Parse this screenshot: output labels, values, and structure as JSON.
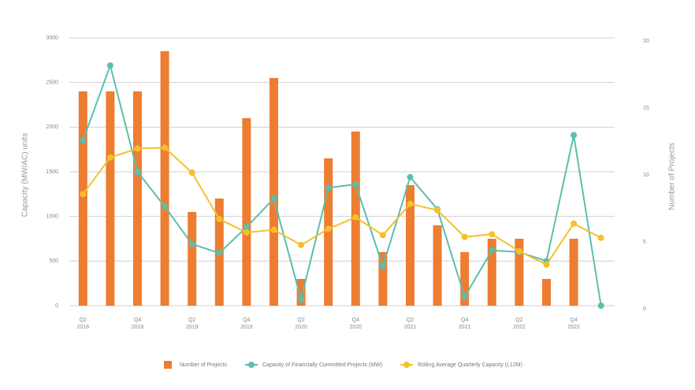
{
  "chart_data": {
    "type": "bar-line",
    "ylabel": "Capacity (MW/AC) units",
    "y2label": "Number of Projects",
    "categories": [
      "Q2 2018",
      null,
      "Q4 2018",
      null,
      "Q2 2019",
      null,
      "Q4 2019",
      null,
      "Q2 2020",
      null,
      "Q4 2020",
      null,
      "Q2 2021",
      null,
      "Q4 2021",
      null,
      "Q2 2022",
      null,
      "Q4 2022",
      null
    ],
    "ylim": [
      0,
      3000
    ],
    "yticks": [
      0,
      500,
      1000,
      1500,
      2000,
      2500,
      3000
    ],
    "y2lim": [
      0,
      20
    ],
    "y2ticks": [
      0,
      5,
      10,
      15,
      20
    ],
    "grid": true,
    "series": [
      {
        "name": "Number of Projects",
        "type": "bar",
        "axis": "y2",
        "color": "#ed7d31",
        "values": [
          16,
          16,
          16,
          19,
          7,
          8,
          14,
          17,
          2,
          11,
          13,
          4,
          9,
          6,
          4,
          5,
          5,
          2,
          5,
          0
        ]
      },
      {
        "name": "Capacity of Financially Committed Projects (MW)",
        "type": "line",
        "color": "#5bbfad",
        "values": [
          1850,
          2690,
          1500,
          1110,
          690,
          590,
          880,
          1200,
          70,
          1320,
          1360,
          440,
          1440,
          1080,
          100,
          620,
          600,
          500,
          1910,
          0
        ]
      },
      {
        "name": "Rolling Average Quarterly Capacity (L12M)",
        "type": "line",
        "color": "#f5c02c",
        "values": [
          1250,
          1660,
          1760,
          1770,
          1490,
          970,
          820,
          850,
          680,
          860,
          990,
          790,
          1140,
          1070,
          770,
          800,
          610,
          460,
          920,
          760
        ]
      }
    ]
  }
}
